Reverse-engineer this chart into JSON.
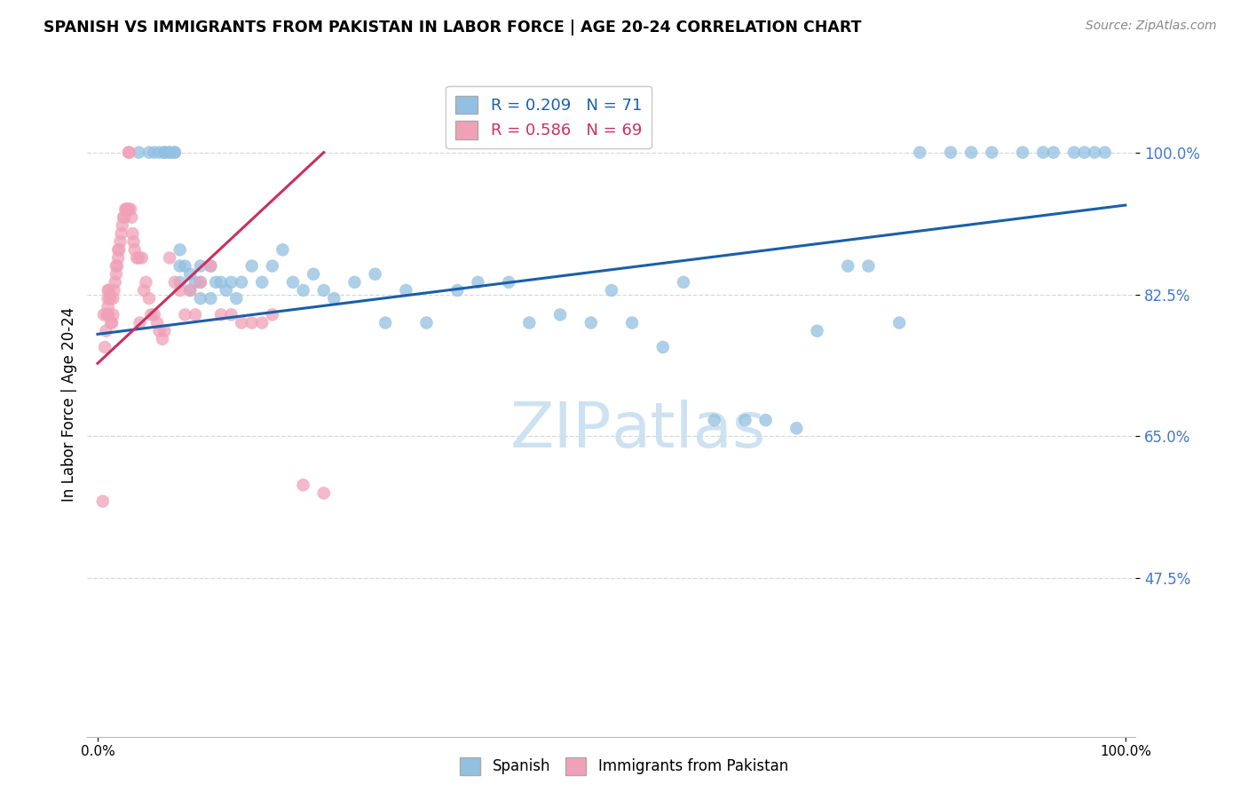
{
  "title": "SPANISH VS IMMIGRANTS FROM PAKISTAN IN LABOR FORCE | AGE 20-24 CORRELATION CHART",
  "source": "Source: ZipAtlas.com",
  "ylabel": "In Labor Force | Age 20-24",
  "r_blue": 0.209,
  "n_blue": 71,
  "r_pink": 0.586,
  "n_pink": 69,
  "blue_color": "#92c0e0",
  "pink_color": "#f0a0b8",
  "blue_line_color": "#1a5fa8",
  "pink_line_color": "#c83060",
  "grid_color": "#d8d8d8",
  "ytick_color": "#4477cc",
  "watermark_color": "#c8dff0",
  "blue_x": [
    0.04,
    0.05,
    0.055,
    0.06,
    0.065,
    0.065,
    0.07,
    0.07,
    0.075,
    0.075,
    0.08,
    0.08,
    0.08,
    0.085,
    0.09,
    0.09,
    0.095,
    0.1,
    0.1,
    0.1,
    0.11,
    0.11,
    0.115,
    0.12,
    0.125,
    0.13,
    0.135,
    0.14,
    0.15,
    0.16,
    0.17,
    0.18,
    0.19,
    0.2,
    0.21,
    0.22,
    0.23,
    0.25,
    0.27,
    0.28,
    0.3,
    0.32,
    0.35,
    0.37,
    0.4,
    0.42,
    0.45,
    0.48,
    0.5,
    0.52,
    0.55,
    0.57,
    0.6,
    0.63,
    0.65,
    0.68,
    0.7,
    0.73,
    0.75,
    0.78,
    0.8,
    0.83,
    0.85,
    0.87,
    0.9,
    0.92,
    0.93,
    0.95,
    0.96,
    0.97,
    0.98
  ],
  "blue_y": [
    1.0,
    1.0,
    1.0,
    1.0,
    1.0,
    1.0,
    1.0,
    1.0,
    1.0,
    1.0,
    0.88,
    0.86,
    0.84,
    0.86,
    0.85,
    0.83,
    0.84,
    0.86,
    0.84,
    0.82,
    0.86,
    0.82,
    0.84,
    0.84,
    0.83,
    0.84,
    0.82,
    0.84,
    0.86,
    0.84,
    0.86,
    0.88,
    0.84,
    0.83,
    0.85,
    0.83,
    0.82,
    0.84,
    0.85,
    0.79,
    0.83,
    0.79,
    0.83,
    0.84,
    0.84,
    0.79,
    0.8,
    0.79,
    0.83,
    0.79,
    0.76,
    0.84,
    0.67,
    0.67,
    0.67,
    0.66,
    0.78,
    0.86,
    0.86,
    0.79,
    1.0,
    1.0,
    1.0,
    1.0,
    1.0,
    1.0,
    1.0,
    1.0,
    1.0,
    1.0,
    1.0
  ],
  "pink_x": [
    0.005,
    0.006,
    0.007,
    0.008,
    0.009,
    0.01,
    0.01,
    0.01,
    0.01,
    0.01,
    0.011,
    0.012,
    0.013,
    0.014,
    0.015,
    0.015,
    0.016,
    0.017,
    0.018,
    0.018,
    0.019,
    0.02,
    0.02,
    0.021,
    0.022,
    0.023,
    0.024,
    0.025,
    0.026,
    0.027,
    0.028,
    0.029,
    0.03,
    0.03,
    0.031,
    0.032,
    0.033,
    0.034,
    0.035,
    0.036,
    0.038,
    0.04,
    0.041,
    0.043,
    0.045,
    0.047,
    0.05,
    0.052,
    0.055,
    0.058,
    0.06,
    0.063,
    0.065,
    0.07,
    0.075,
    0.08,
    0.085,
    0.09,
    0.095,
    0.1,
    0.11,
    0.12,
    0.13,
    0.14,
    0.15,
    0.16,
    0.17,
    0.2,
    0.22
  ],
  "pink_y": [
    0.57,
    0.8,
    0.76,
    0.78,
    0.8,
    0.8,
    0.8,
    0.81,
    0.82,
    0.83,
    0.83,
    0.82,
    0.79,
    0.79,
    0.8,
    0.82,
    0.83,
    0.84,
    0.85,
    0.86,
    0.86,
    0.87,
    0.88,
    0.88,
    0.89,
    0.9,
    0.91,
    0.92,
    0.92,
    0.93,
    0.93,
    0.93,
    0.93,
    1.0,
    1.0,
    0.93,
    0.92,
    0.9,
    0.89,
    0.88,
    0.87,
    0.87,
    0.79,
    0.87,
    0.83,
    0.84,
    0.82,
    0.8,
    0.8,
    0.79,
    0.78,
    0.77,
    0.78,
    0.87,
    0.84,
    0.83,
    0.8,
    0.83,
    0.8,
    0.84,
    0.86,
    0.8,
    0.8,
    0.79,
    0.79,
    0.79,
    0.8,
    0.59,
    0.58
  ],
  "blue_trend_x": [
    0.0,
    1.0
  ],
  "blue_trend_y": [
    0.776,
    0.935
  ],
  "pink_trend_x": [
    0.0,
    0.22
  ],
  "pink_trend_y": [
    0.74,
    1.0
  ],
  "xlim": [
    -0.01,
    1.01
  ],
  "ylim": [
    0.28,
    1.1
  ],
  "ytick_vals": [
    0.475,
    0.65,
    0.825,
    1.0
  ],
  "ytick_labels": [
    "47.5%",
    "65.0%",
    "82.5%",
    "100.0%"
  ],
  "xtick_vals": [
    0.0,
    1.0
  ],
  "xtick_labels": [
    "0.0%",
    "100.0%"
  ]
}
